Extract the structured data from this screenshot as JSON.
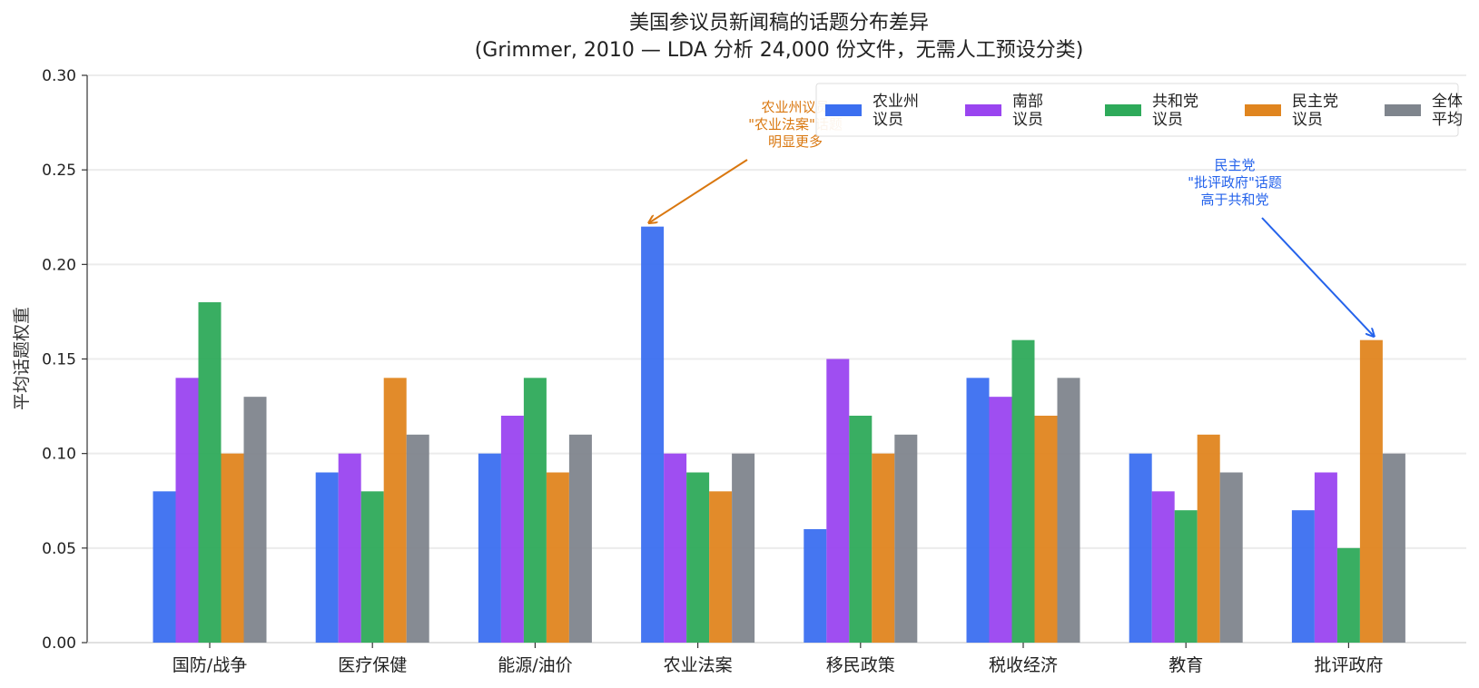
{
  "chart_data": {
    "type": "bar",
    "title": "美国参议员新闻稿的话题分布差异",
    "subtitle": "(Grimmer, 2010 — LDA 分析 24,000 份文件，无需人工预设分类)",
    "xlabel": "",
    "ylabel": "平均话题权重",
    "ylim": [
      0,
      0.3
    ],
    "yticks": [
      "0.00",
      "0.05",
      "0.10",
      "0.15",
      "0.20",
      "0.25",
      "0.30"
    ],
    "grid": "horizontal",
    "legend_placement": "top-right",
    "categories": [
      "国防/战争",
      "医疗保健",
      "能源/油价",
      "农业法案",
      "移民政策",
      "税收经济",
      "教育",
      "批评政府"
    ],
    "series": [
      {
        "name": "农业州\n议员",
        "color": "#3b6ff0",
        "values": [
          0.08,
          0.09,
          0.1,
          0.22,
          0.06,
          0.14,
          0.1,
          0.07
        ]
      },
      {
        "name": "南部\n议员",
        "color": "#9a45f0",
        "values": [
          0.14,
          0.1,
          0.12,
          0.1,
          0.15,
          0.13,
          0.08,
          0.09
        ]
      },
      {
        "name": "共和党\n议员",
        "color": "#2eaa5a",
        "values": [
          0.18,
          0.08,
          0.14,
          0.09,
          0.12,
          0.16,
          0.07,
          0.05
        ]
      },
      {
        "name": "民主党\n议员",
        "color": "#e0851f",
        "values": [
          0.1,
          0.14,
          0.09,
          0.08,
          0.1,
          0.12,
          0.11,
          0.16
        ]
      },
      {
        "name": "全体\n平均",
        "color": "#7f858d",
        "values": [
          0.13,
          0.11,
          0.11,
          0.1,
          0.11,
          0.14,
          0.09,
          0.1
        ]
      }
    ],
    "annotations": [
      {
        "text": "农业州议员\n\"农业法案\"话题\n明显更多",
        "color": "#d9770f",
        "target_category": "农业法案",
        "target_series": 0
      },
      {
        "text": "民主党\n\"批评政府\"话题\n高于共和党",
        "color": "#2563eb",
        "target_category": "批评政府",
        "target_series": 3
      }
    ]
  }
}
